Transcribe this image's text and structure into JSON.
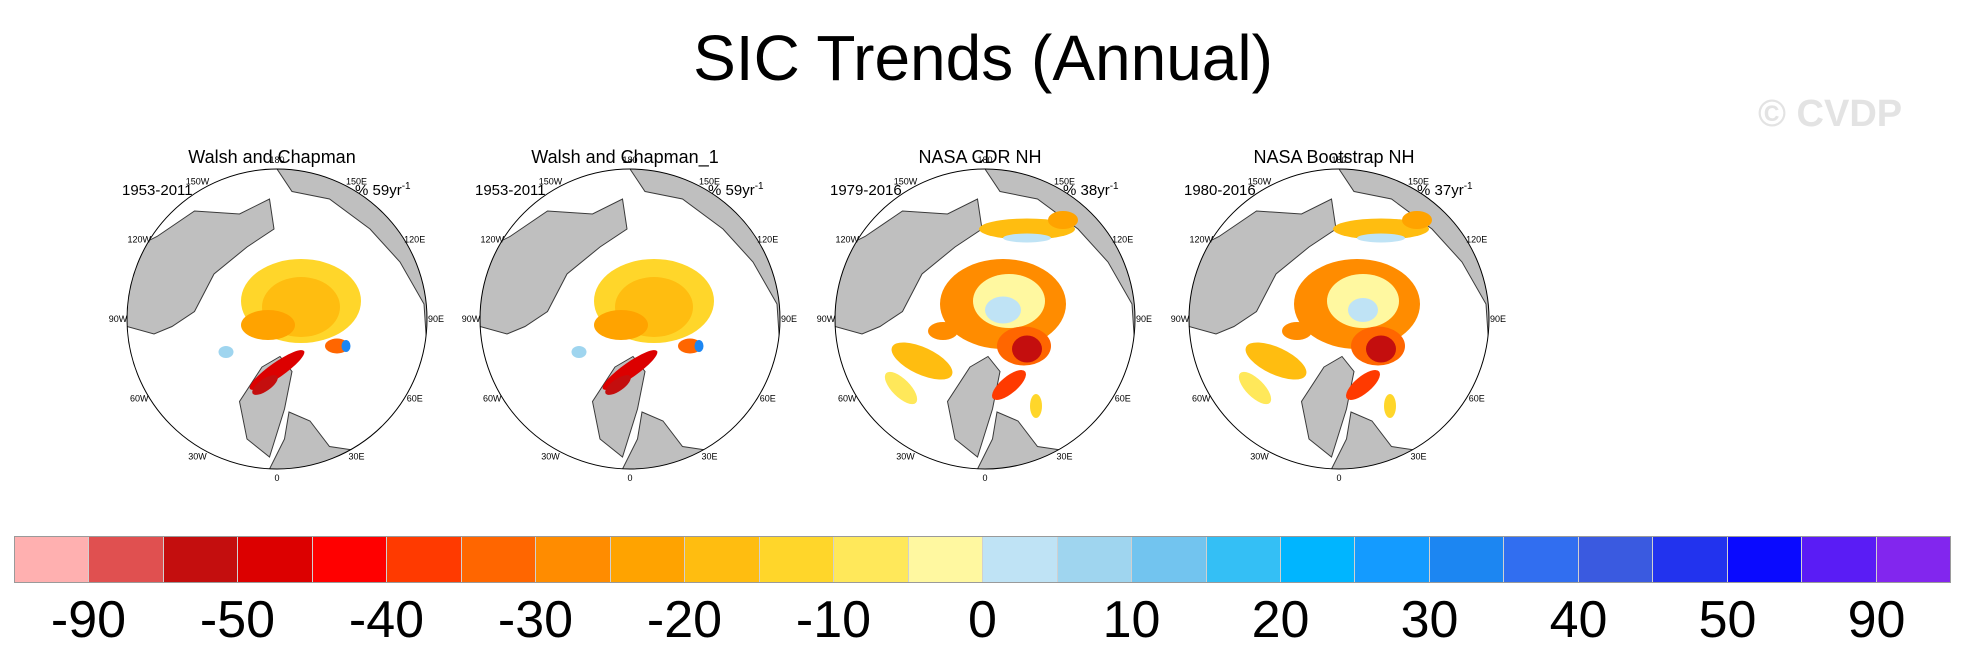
{
  "title": "SIC Trends (Annual)",
  "watermark": "© CVDP",
  "colors": {
    "land": "#bfbfbf",
    "ocean": "#ffffff",
    "coastline": "#3a3a3a"
  },
  "chart_data": [
    {
      "type": "heatmap",
      "projection": "north-polar-stereographic",
      "title": "Walsh and Chapman",
      "period": "1953-2011",
      "units_prefix": "% 59yr",
      "units_exponent": "-1",
      "longitude_labels": [
        "180",
        "150E",
        "120E",
        "90E",
        "60E",
        "30E",
        "0",
        "30W",
        "60W",
        "90W",
        "120W",
        "150W"
      ]
    },
    {
      "type": "heatmap",
      "projection": "north-polar-stereographic",
      "title": "Walsh and Chapman_1",
      "period": "1953-2011",
      "units_prefix": "% 59yr",
      "units_exponent": "-1",
      "longitude_labels": [
        "180",
        "150E",
        "120E",
        "90E",
        "60E",
        "30E",
        "0",
        "30W",
        "60W",
        "90W",
        "120W",
        "150W"
      ]
    },
    {
      "type": "heatmap",
      "projection": "north-polar-stereographic",
      "title": "NASA CDR NH",
      "period": "1979-2016",
      "units_prefix": "% 38yr",
      "units_exponent": "-1",
      "longitude_labels": [
        "180",
        "150E",
        "120E",
        "90E",
        "60E",
        "30E",
        "0",
        "30W",
        "60W",
        "90W",
        "120W",
        "150W"
      ]
    },
    {
      "type": "heatmap",
      "projection": "north-polar-stereographic",
      "title": "NASA Bootstrap NH",
      "period": "1980-2016",
      "units_prefix": "% 37yr",
      "units_exponent": "-1",
      "longitude_labels": [
        "180",
        "150E",
        "120E",
        "90E",
        "60E",
        "30E",
        "0",
        "30W",
        "60W",
        "90W",
        "120W",
        "150W"
      ]
    }
  ],
  "colorbar": {
    "colors": [
      "#ffb0b0",
      "#e05050",
      "#c40e0e",
      "#dc0000",
      "#ff0000",
      "#ff3a00",
      "#ff6600",
      "#ff8c00",
      "#ffa300",
      "#ffbd10",
      "#ffd62a",
      "#ffe85a",
      "#fff8a0",
      "#bfe3f5",
      "#9fd5ef",
      "#72c4ef",
      "#34bff5",
      "#00b5ff",
      "#149bff",
      "#1c86f2",
      "#316ef0",
      "#3a5ae0",
      "#2233ee",
      "#0a0aff",
      "#5a1cf5",
      "#8226ee"
    ],
    "labels": [
      "-90",
      "-50",
      "-40",
      "-30",
      "-20",
      "-10",
      "0",
      "10",
      "20",
      "30",
      "40",
      "50",
      "90"
    ],
    "label_boundary_index": [
      1,
      3,
      5,
      7,
      9,
      11,
      13,
      15,
      17,
      19,
      21,
      23,
      25
    ]
  },
  "map_regions": [
    {
      "panel": 0,
      "patches": [
        {
          "shape": "ellipse",
          "u": 0.58,
          "v": 0.44,
          "a": 0.2,
          "b": 0.14,
          "color": "#ffd62a"
        },
        {
          "shape": "ellipse",
          "u": 0.58,
          "v": 0.46,
          "a": 0.13,
          "b": 0.1,
          "color": "#ffbd10"
        },
        {
          "shape": "ellipse",
          "u": 0.47,
          "v": 0.52,
          "a": 0.09,
          "b": 0.05,
          "color": "#ffa300"
        },
        {
          "shape": "ellipse",
          "u": 0.5,
          "v": 0.67,
          "a": 0.11,
          "b": 0.025,
          "rot": -35,
          "color": "#dc0000"
        },
        {
          "shape": "ellipse",
          "u": 0.46,
          "v": 0.72,
          "a": 0.05,
          "b": 0.02,
          "rot": -35,
          "color": "#c40e0e"
        },
        {
          "shape": "ellipse",
          "u": 0.7,
          "v": 0.59,
          "a": 0.04,
          "b": 0.025,
          "color": "#ff6600"
        },
        {
          "shape": "ellipse",
          "u": 0.73,
          "v": 0.59,
          "a": 0.015,
          "b": 0.02,
          "color": "#1c86f2"
        },
        {
          "shape": "ellipse",
          "u": 0.33,
          "v": 0.61,
          "a": 0.025,
          "b": 0.02,
          "color": "#9fd5ef"
        }
      ]
    },
    {
      "panel": 1,
      "patches": [
        {
          "shape": "ellipse",
          "u": 0.58,
          "v": 0.44,
          "a": 0.2,
          "b": 0.14,
          "color": "#ffd62a"
        },
        {
          "shape": "ellipse",
          "u": 0.58,
          "v": 0.46,
          "a": 0.13,
          "b": 0.1,
          "color": "#ffbd10"
        },
        {
          "shape": "ellipse",
          "u": 0.47,
          "v": 0.52,
          "a": 0.09,
          "b": 0.05,
          "color": "#ffa300"
        },
        {
          "shape": "ellipse",
          "u": 0.5,
          "v": 0.67,
          "a": 0.11,
          "b": 0.025,
          "rot": -35,
          "color": "#dc0000"
        },
        {
          "shape": "ellipse",
          "u": 0.46,
          "v": 0.72,
          "a": 0.05,
          "b": 0.02,
          "rot": -35,
          "color": "#c40e0e"
        },
        {
          "shape": "ellipse",
          "u": 0.7,
          "v": 0.59,
          "a": 0.04,
          "b": 0.025,
          "color": "#ff6600"
        },
        {
          "shape": "ellipse",
          "u": 0.73,
          "v": 0.59,
          "a": 0.015,
          "b": 0.02,
          "color": "#1c86f2"
        },
        {
          "shape": "ellipse",
          "u": 0.33,
          "v": 0.61,
          "a": 0.025,
          "b": 0.02,
          "color": "#9fd5ef"
        }
      ]
    },
    {
      "panel": 2,
      "patches": [
        {
          "shape": "ellipse",
          "u": 0.56,
          "v": 0.45,
          "a": 0.21,
          "b": 0.15,
          "color": "#ff8c00"
        },
        {
          "shape": "ellipse",
          "u": 0.58,
          "v": 0.44,
          "a": 0.12,
          "b": 0.09,
          "color": "#fff8a0"
        },
        {
          "shape": "ellipse",
          "u": 0.56,
          "v": 0.47,
          "a": 0.06,
          "b": 0.045,
          "color": "#bfe3f5"
        },
        {
          "shape": "ellipse",
          "u": 0.64,
          "v": 0.2,
          "a": 0.16,
          "b": 0.035,
          "color": "#ffbd10"
        },
        {
          "shape": "ellipse",
          "u": 0.64,
          "v": 0.23,
          "a": 0.08,
          "b": 0.015,
          "color": "#bfe3f5"
        },
        {
          "shape": "ellipse",
          "u": 0.76,
          "v": 0.17,
          "a": 0.05,
          "b": 0.03,
          "color": "#ffa300"
        },
        {
          "shape": "ellipse",
          "u": 0.63,
          "v": 0.59,
          "a": 0.09,
          "b": 0.065,
          "color": "#ff6600"
        },
        {
          "shape": "ellipse",
          "u": 0.64,
          "v": 0.6,
          "a": 0.05,
          "b": 0.045,
          "color": "#c40e0e"
        },
        {
          "shape": "ellipse",
          "u": 0.58,
          "v": 0.72,
          "a": 0.07,
          "b": 0.028,
          "rot": -40,
          "color": "#ff3a00"
        },
        {
          "shape": "ellipse",
          "u": 0.29,
          "v": 0.64,
          "a": 0.11,
          "b": 0.045,
          "rot": 25,
          "color": "#ffbd10"
        },
        {
          "shape": "ellipse",
          "u": 0.22,
          "v": 0.73,
          "a": 0.07,
          "b": 0.03,
          "rot": 45,
          "color": "#ffe85a"
        },
        {
          "shape": "ellipse",
          "u": 0.36,
          "v": 0.54,
          "a": 0.05,
          "b": 0.03,
          "color": "#ff8c00"
        },
        {
          "shape": "ellipse",
          "u": 0.67,
          "v": 0.79,
          "a": 0.02,
          "b": 0.04,
          "color": "#ffd62a"
        }
      ]
    },
    {
      "panel": 3,
      "patches": [
        {
          "shape": "ellipse",
          "u": 0.56,
          "v": 0.45,
          "a": 0.21,
          "b": 0.15,
          "color": "#ff8c00"
        },
        {
          "shape": "ellipse",
          "u": 0.58,
          "v": 0.44,
          "a": 0.12,
          "b": 0.09,
          "color": "#fff8a0"
        },
        {
          "shape": "ellipse",
          "u": 0.58,
          "v": 0.47,
          "a": 0.05,
          "b": 0.04,
          "color": "#bfe3f5"
        },
        {
          "shape": "ellipse",
          "u": 0.64,
          "v": 0.2,
          "a": 0.16,
          "b": 0.035,
          "color": "#ffbd10"
        },
        {
          "shape": "ellipse",
          "u": 0.64,
          "v": 0.23,
          "a": 0.08,
          "b": 0.015,
          "color": "#bfe3f5"
        },
        {
          "shape": "ellipse",
          "u": 0.76,
          "v": 0.17,
          "a": 0.05,
          "b": 0.03,
          "color": "#ffa300"
        },
        {
          "shape": "ellipse",
          "u": 0.63,
          "v": 0.59,
          "a": 0.09,
          "b": 0.065,
          "color": "#ff6600"
        },
        {
          "shape": "ellipse",
          "u": 0.64,
          "v": 0.6,
          "a": 0.05,
          "b": 0.045,
          "color": "#c40e0e"
        },
        {
          "shape": "ellipse",
          "u": 0.58,
          "v": 0.72,
          "a": 0.07,
          "b": 0.028,
          "rot": -40,
          "color": "#ff3a00"
        },
        {
          "shape": "ellipse",
          "u": 0.29,
          "v": 0.64,
          "a": 0.11,
          "b": 0.045,
          "rot": 25,
          "color": "#ffbd10"
        },
        {
          "shape": "ellipse",
          "u": 0.22,
          "v": 0.73,
          "a": 0.07,
          "b": 0.03,
          "rot": 45,
          "color": "#ffe85a"
        },
        {
          "shape": "ellipse",
          "u": 0.36,
          "v": 0.54,
          "a": 0.05,
          "b": 0.03,
          "color": "#ff8c00"
        },
        {
          "shape": "ellipse",
          "u": 0.67,
          "v": 0.79,
          "a": 0.02,
          "b": 0.04,
          "color": "#ffd62a"
        }
      ]
    }
  ]
}
